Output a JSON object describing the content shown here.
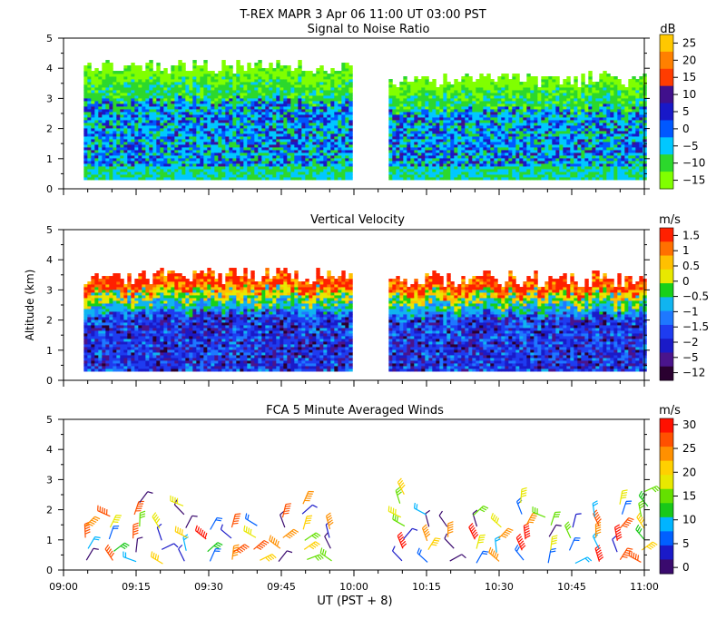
{
  "header": {
    "line1": "T-REX  MAPR  3 Apr 06  11:00 UT  03:00  PST"
  },
  "x_axis": {
    "label": "UT  (PST + 8)",
    "ticks": [
      "09:00",
      "09:15",
      "09:30",
      "09:45",
      "10:00",
      "10:15",
      "10:30",
      "10:45",
      "11:00"
    ]
  },
  "y_axis": {
    "label": "Altitude (km)",
    "ticks": [
      "0",
      "1",
      "2",
      "3",
      "4",
      "5"
    ]
  },
  "colors": {
    "snr": [
      "#80ff00",
      "#2cd82c",
      "#00c8ff",
      "#0058ff",
      "#1818c8",
      "#40108c",
      "#ff3c00",
      "#ff8000",
      "#ffc800"
    ],
    "w": [
      "#2a0030",
      "#4a148c",
      "#1a1ac8",
      "#1e3cf0",
      "#1e78ff",
      "#10b4f0",
      "#18d018",
      "#e8e800",
      "#ffc000",
      "#ff7000",
      "#ff2000"
    ],
    "wind": [
      "#3a0a6e",
      "#1a1ac8",
      "#0060ff",
      "#00b4ff",
      "#18c818",
      "#64e000",
      "#e8e800",
      "#ffd000",
      "#ff9000",
      "#ff5000",
      "#ff1000"
    ]
  },
  "chart_data": [
    {
      "type": "heatmap",
      "title": "Signal to Noise Ratio",
      "units": "dB",
      "xlabel": "UT  (PST + 8)",
      "ylabel": "Altitude (km)",
      "xlim": [
        "09:00",
        "11:00"
      ],
      "ylim": [
        0,
        5
      ],
      "colorbar_ticks": [
        "25",
        "20",
        "15",
        "10",
        "5",
        "0",
        "−5",
        "−10",
        "−15"
      ],
      "colorbar_range": [
        -17.5,
        27.5
      ],
      "data_gaps_ut": [
        [
          "09:59",
          "10:07"
        ]
      ],
      "top_altitude_km": [
        4.0,
        3.6
      ]
    },
    {
      "type": "heatmap",
      "title": "Vertical Velocity",
      "units": "m/s",
      "xlabel": "UT  (PST + 8)",
      "ylabel": "Altitude (km)",
      "xlim": [
        "09:00",
        "11:00"
      ],
      "ylim": [
        0,
        5
      ],
      "colorbar_ticks": [
        "1.5",
        "1",
        "0.5",
        "0",
        "−0.5",
        "−1",
        "−1.5",
        "−2",
        "−5",
        "−12"
      ],
      "data_gaps_ut": [
        [
          "09:59",
          "10:07"
        ]
      ]
    },
    {
      "type": "scatter",
      "title": "FCA 5 Minute Averaged Winds",
      "units": "m/s",
      "xlabel": "UT  (PST + 8)",
      "ylabel": "Altitude (km)",
      "xlim": [
        "09:00",
        "11:00"
      ],
      "ylim": [
        0,
        5
      ],
      "colorbar_ticks": [
        "30",
        "25",
        "20",
        "15",
        "10",
        "5",
        "0"
      ],
      "colorbar_range": [
        0,
        33
      ],
      "representation": "wind barbs",
      "sample_interval_min": 5
    }
  ]
}
